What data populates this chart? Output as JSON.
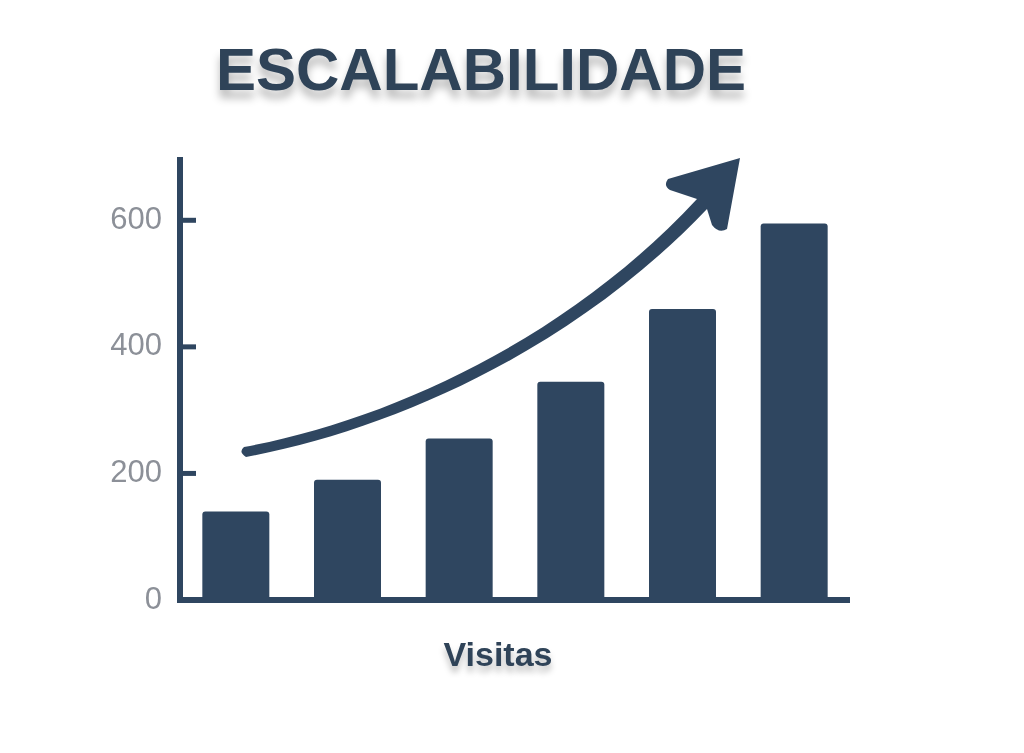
{
  "chart_data": {
    "type": "bar",
    "title": "ESCALABILIDADE",
    "xlabel": "Visitas",
    "categories": [
      null,
      null,
      null,
      null,
      null,
      null
    ],
    "values": [
      140,
      190,
      255,
      345,
      460,
      595
    ],
    "color": "#2f4660",
    "ylim": [
      0,
      700
    ],
    "yticks": [
      0,
      200,
      400,
      600
    ],
    "tick_labels": "y"
  }
}
